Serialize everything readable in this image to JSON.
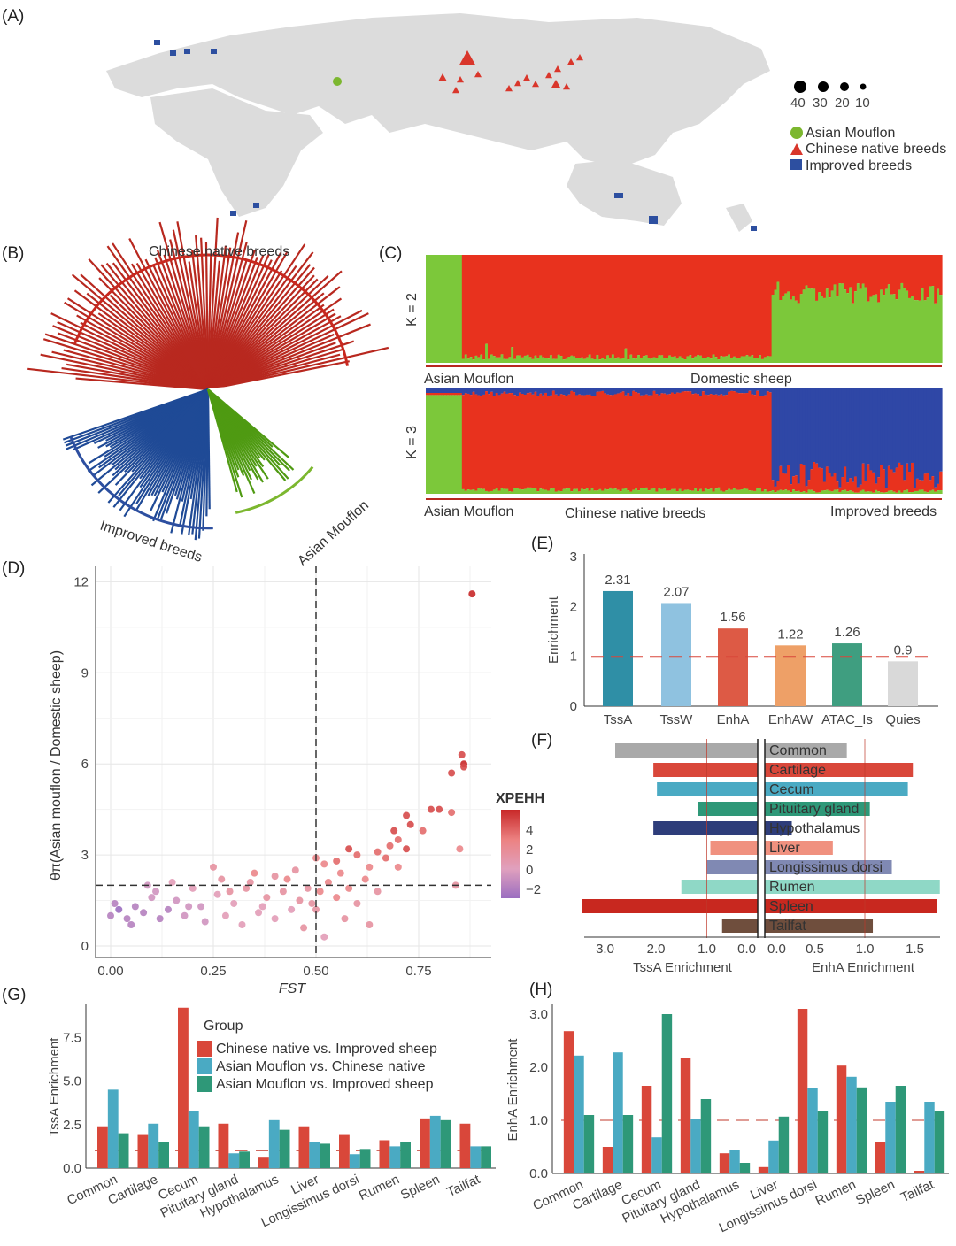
{
  "panels": {
    "A": "(A)",
    "B": "(B)",
    "C": "(C)",
    "D": "(D)",
    "E": "(E)",
    "F": "(F)",
    "G": "(G)",
    "H": "(H)"
  },
  "map": {
    "size_legend": [
      "40",
      "30",
      "20",
      "10"
    ],
    "legend": [
      {
        "label": "Asian Mouflon",
        "shape": "circle",
        "color": "#7cb72f"
      },
      {
        "label": "Chinese native breeds",
        "shape": "triangle",
        "color": "#d9362b"
      },
      {
        "label": "Improved breeds",
        "shape": "square",
        "color": "#2d4fa0"
      }
    ]
  },
  "tree": {
    "groups": [
      {
        "label": "Chinese native breeds",
        "color": "#b8281f"
      },
      {
        "label": "Improved breeds",
        "color": "#1f4a96"
      },
      {
        "label": "Asian Mouflon",
        "color": "#4f9a12"
      }
    ]
  },
  "admixture": {
    "k2": {
      "label": "K = 2",
      "groups": [
        "Asian Mouflon",
        "Domestic sheep"
      ]
    },
    "k3": {
      "label": "K = 3",
      "groups": [
        "Asian Mouflon",
        "Chinese native breeds",
        "Improved breeds"
      ]
    },
    "colors": {
      "green": "#7cc83a",
      "red": "#e8321e",
      "blue": "#2f47a6"
    }
  },
  "chart_data": [
    {
      "id": "D",
      "type": "scatter",
      "xlabel": "FST",
      "ylabel": "θπ(Asian mouflon / Domestic sheep)",
      "xlim": [
        -0.04,
        0.93
      ],
      "ylim": [
        -0.3,
        12.5
      ],
      "xticks": [
        "0.00",
        "0.25",
        "0.50",
        "0.75"
      ],
      "yticks": [
        "0",
        "3",
        "6",
        "9",
        "12"
      ],
      "thresholds": {
        "x": 0.5,
        "y": 2.0
      },
      "color_legend": {
        "title": "XPEHH",
        "ticks": [
          "4",
          "2",
          "0",
          "−2"
        ],
        "range": [
          -3,
          5
        ]
      },
      "points": [
        [
          0.88,
          11.6,
          5
        ],
        [
          0.86,
          6.0,
          5
        ],
        [
          0.86,
          5.9,
          4
        ],
        [
          0.855,
          6.3,
          4
        ],
        [
          0.83,
          5.7,
          4
        ],
        [
          0.8,
          4.5,
          4
        ],
        [
          0.78,
          4.5,
          4
        ],
        [
          0.83,
          4.4,
          3
        ],
        [
          0.72,
          4.3,
          4
        ],
        [
          0.73,
          4.0,
          4
        ],
        [
          0.69,
          3.8,
          4
        ],
        [
          0.7,
          3.5,
          3
        ],
        [
          0.76,
          3.8,
          3
        ],
        [
          0.72,
          3.2,
          4
        ],
        [
          0.68,
          3.3,
          3
        ],
        [
          0.65,
          3.1,
          3
        ],
        [
          0.6,
          3.0,
          3
        ],
        [
          0.58,
          3.2,
          4
        ],
        [
          0.55,
          2.8,
          3
        ],
        [
          0.52,
          2.7,
          2
        ],
        [
          0.63,
          2.6,
          2
        ],
        [
          0.67,
          2.9,
          3
        ],
        [
          0.7,
          2.6,
          2
        ],
        [
          0.62,
          2.2,
          2
        ],
        [
          0.65,
          1.8,
          1
        ],
        [
          0.6,
          1.4,
          1
        ],
        [
          0.63,
          0.7,
          1
        ],
        [
          0.57,
          0.9,
          1
        ],
        [
          0.52,
          0.3,
          0
        ],
        [
          0.45,
          2.5,
          1
        ],
        [
          0.4,
          2.3,
          1
        ],
        [
          0.35,
          2.4,
          2
        ],
        [
          0.25,
          2.6,
          1
        ],
        [
          0.5,
          2.9,
          2
        ],
        [
          0.84,
          2.0,
          1
        ],
        [
          0.85,
          3.2,
          2
        ],
        [
          0.56,
          2.4,
          2
        ],
        [
          0.53,
          2.1,
          2
        ],
        [
          0.48,
          1.9,
          1
        ],
        [
          0.46,
          1.5,
          1
        ],
        [
          0.44,
          1.2,
          0
        ],
        [
          0.42,
          1.8,
          1
        ],
        [
          0.38,
          1.6,
          1
        ],
        [
          0.36,
          1.1,
          0
        ],
        [
          0.33,
          1.9,
          1
        ],
        [
          0.3,
          1.4,
          0
        ],
        [
          0.28,
          1.0,
          0
        ],
        [
          0.26,
          1.7,
          0
        ],
        [
          0.22,
          1.3,
          -1
        ],
        [
          0.2,
          1.9,
          0
        ],
        [
          0.18,
          1.0,
          -1
        ],
        [
          0.16,
          1.5,
          -1
        ],
        [
          0.14,
          1.2,
          -2
        ],
        [
          0.12,
          0.9,
          -2
        ],
        [
          0.1,
          1.6,
          -1
        ],
        [
          0.08,
          1.1,
          -2
        ],
        [
          0.06,
          1.3,
          -2
        ],
        [
          0.04,
          0.9,
          -2
        ],
        [
          0.02,
          1.2,
          -3
        ],
        [
          0.0,
          1.0,
          -2
        ],
        [
          0.01,
          1.4,
          -2
        ],
        [
          0.05,
          0.7,
          -2
        ],
        [
          0.09,
          2.0,
          -1
        ],
        [
          0.15,
          2.1,
          0
        ],
        [
          0.23,
          0.8,
          -1
        ],
        [
          0.32,
          0.7,
          0
        ],
        [
          0.4,
          0.9,
          0
        ],
        [
          0.47,
          0.6,
          1
        ],
        [
          0.5,
          1.2,
          1
        ],
        [
          0.55,
          1.6,
          2
        ],
        [
          0.58,
          1.9,
          2
        ],
        [
          0.34,
          2.1,
          1
        ],
        [
          0.27,
          2.2,
          1
        ],
        [
          0.43,
          2.2,
          2
        ],
        [
          0.51,
          1.8,
          2
        ],
        [
          0.11,
          1.8,
          -1
        ],
        [
          0.19,
          1.3,
          -1
        ],
        [
          0.37,
          1.3,
          0
        ],
        [
          0.29,
          1.8,
          1
        ],
        [
          0.49,
          1.4,
          1
        ]
      ]
    },
    {
      "id": "E",
      "type": "bar",
      "ylabel": "Enrichment",
      "ylim": [
        0,
        3
      ],
      "yticks": [
        "0",
        "1",
        "2",
        "3"
      ],
      "reference": 1,
      "categories": [
        "TssA",
        "TssW",
        "EnhA",
        "EnhAW",
        "ATAC_Is",
        "Quies"
      ],
      "values": [
        2.31,
        2.07,
        1.56,
        1.22,
        1.26,
        0.9
      ],
      "labels": [
        "2.31",
        "2.07",
        "1.56",
        "1.22",
        "1.26",
        "0.9"
      ],
      "colors": [
        "#2f8fa6",
        "#8fc2e0",
        "#dd5a45",
        "#eea067",
        "#3f9e80",
        "#d9d9d9"
      ]
    },
    {
      "id": "F",
      "type": "bar",
      "orientation": "horizontal-butterfly",
      "categories": [
        "Common",
        "Cartilage",
        "Cecum",
        "Pituitary gland",
        "Hypothalamus",
        "Liver",
        "Longissimus dorsi",
        "Rumen",
        "Spleen",
        "Tailfat"
      ],
      "colors": [
        "#a9a9a9",
        "#d9473a",
        "#4aaac3",
        "#2e9878",
        "#2e3d7a",
        "#f0917f",
        "#8089b3",
        "#8fd8c6",
        "#c8281f",
        "#6f4e3d"
      ],
      "left": {
        "xlabel": "TssA Enrichment",
        "xticks": [
          "3.0",
          "2.0",
          "1.0",
          "0.0"
        ],
        "values": [
          2.8,
          2.05,
          1.98,
          1.18,
          2.05,
          0.93,
          1.0,
          1.5,
          3.45,
          0.7
        ]
      },
      "right": {
        "xlabel": "EnhA Enrichment",
        "xticks": [
          "0.0",
          "0.5",
          "1.0",
          "1.5"
        ],
        "values": [
          0.82,
          1.48,
          1.43,
          1.05,
          0.27,
          0.68,
          1.27,
          1.75,
          1.72,
          1.08
        ]
      }
    },
    {
      "id": "G",
      "type": "bar",
      "ylabel": "TssA Enrichment",
      "ylim": [
        0,
        9.3
      ],
      "yticks": [
        "0.0",
        "2.5",
        "5.0",
        "7.5"
      ],
      "reference": 1,
      "legend_title": "Group",
      "categories": [
        "Common",
        "Cartilage",
        "Cecum",
        "Pituitary gland",
        "Hypothalamus",
        "Liver",
        "Longissimus dorsi",
        "Rumen",
        "Spleen",
        "Tailfat"
      ],
      "series": [
        {
          "name": "Chinese native vs. Improved sheep",
          "color": "#d9473a",
          "values": [
            2.4,
            1.9,
            9.2,
            2.55,
            0.65,
            2.4,
            1.9,
            1.6,
            2.85,
            2.55
          ]
        },
        {
          "name": "Asian Mouflon vs. Chinese native",
          "color": "#4aaac3",
          "values": [
            4.5,
            2.55,
            3.25,
            0.85,
            2.75,
            1.5,
            0.8,
            1.25,
            3.0,
            1.25
          ]
        },
        {
          "name": "Asian Mouflon vs. Improved sheep",
          "color": "#2e9878",
          "values": [
            2.0,
            1.5,
            2.4,
            0.95,
            2.2,
            1.4,
            1.1,
            1.5,
            2.75,
            1.25
          ]
        }
      ]
    },
    {
      "id": "H",
      "type": "bar",
      "ylabel": "EnhA Enrichment",
      "ylim": [
        0,
        3.15
      ],
      "yticks": [
        "0.0",
        "1.0",
        "2.0",
        "3.0"
      ],
      "reference": 1,
      "categories": [
        "Common",
        "Cartilage",
        "Cecum",
        "Pituitary gland",
        "Hypothalamus",
        "Liver",
        "Longissimus dorsi",
        "Rumen",
        "Spleen",
        "Tailfat"
      ],
      "series": [
        {
          "name": "Chinese native vs. Improved sheep",
          "color": "#d9473a",
          "values": [
            2.68,
            0.5,
            1.65,
            2.18,
            0.38,
            0.12,
            3.1,
            2.03,
            0.6,
            0.05
          ]
        },
        {
          "name": "Asian Mouflon vs. Chinese native",
          "color": "#4aaac3",
          "values": [
            2.22,
            2.28,
            0.68,
            1.03,
            0.45,
            0.62,
            1.6,
            1.82,
            1.35,
            1.35
          ]
        },
        {
          "name": "Asian Mouflon vs. Improved sheep",
          "color": "#2e9878",
          "values": [
            1.1,
            1.1,
            3.0,
            1.4,
            0.2,
            1.07,
            1.18,
            1.62,
            1.65,
            1.18
          ]
        }
      ]
    }
  ]
}
